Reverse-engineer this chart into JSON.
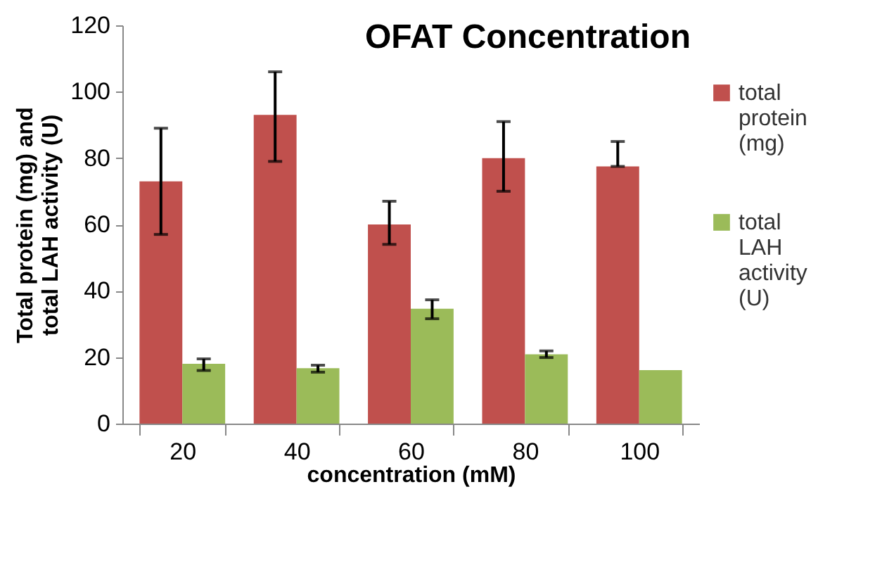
{
  "chart_data": {
    "type": "bar",
    "title": "OFAT Concentration",
    "xlabel": "concentration (mM)",
    "ylabel": "Total protein (mg) and total LAH activity (U)",
    "categories": [
      "20",
      "40",
      "60",
      "80",
      "100"
    ],
    "series": [
      {
        "name": "total protein (mg)",
        "color": "#c0504d",
        "values": [
          73,
          93,
          60,
          80,
          77.5
        ],
        "errors": [
          [
            57,
            89
          ],
          [
            79,
            106
          ],
          [
            54,
            67
          ],
          [
            70,
            91
          ],
          [
            77.5,
            85
          ]
        ]
      },
      {
        "name": "total LAH activity (U)",
        "color": "#9bbb59",
        "values": [
          18,
          16.7,
          34.6,
          20.9,
          16.1
        ],
        "errors": [
          [
            16,
            19.5
          ],
          [
            15.5,
            17.6
          ],
          [
            31.6,
            37.3
          ],
          [
            19.9,
            21.9
          ],
          null
        ]
      }
    ],
    "ylim": [
      0,
      120
    ],
    "yticks": [
      0,
      20,
      40,
      60,
      80,
      100,
      120
    ],
    "grid": false,
    "legend": "right"
  }
}
